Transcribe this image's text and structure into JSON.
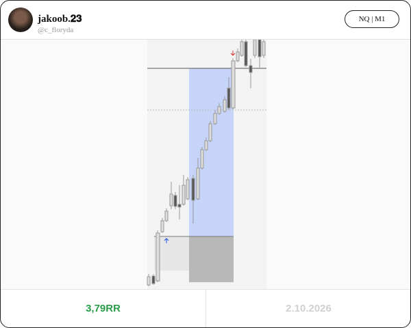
{
  "header": {
    "name": "jakoob.𝟐𝟑",
    "handle": "@c_floryda",
    "button": "NQ | M1"
  },
  "footer": {
    "result": "3,79RR",
    "date": "2.10.2026"
  }
}
